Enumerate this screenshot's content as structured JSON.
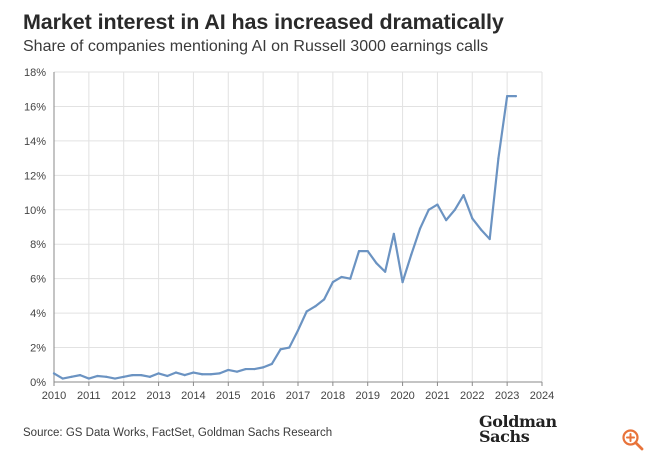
{
  "title": "Market interest in AI has increased dramatically",
  "subtitle": "Share of companies mentioning AI on Russell 3000 earnings calls",
  "source": "Source: GS Data Works, FactSet, Goldman Sachs Research",
  "logo": {
    "line1": "Goldman",
    "line2": "Sachs"
  },
  "icons": {
    "zoom": "zoom-in-icon"
  },
  "colors": {
    "line": "#6b93c2",
    "grid": "#e2e2e2",
    "axis": "#8a8a8a",
    "tick_text": "#444444",
    "zoom_icon": "#e8733a"
  },
  "chart_data": {
    "type": "line",
    "title": "Market interest in AI has increased dramatically",
    "subtitle": "Share of companies mentioning AI on Russell 3000 earnings calls",
    "xlabel": "",
    "ylabel": "",
    "xlim": [
      2010,
      2024
    ],
    "ylim": [
      0,
      18
    ],
    "x_ticks": [
      2010,
      2011,
      2012,
      2013,
      2014,
      2015,
      2016,
      2017,
      2018,
      2019,
      2020,
      2021,
      2022,
      2023,
      2024
    ],
    "y_ticks": [
      0,
      2,
      4,
      6,
      8,
      10,
      12,
      14,
      16,
      18
    ],
    "y_tick_labels": [
      "0%",
      "2%",
      "4%",
      "6%",
      "8%",
      "10%",
      "12%",
      "14%",
      "16%",
      "18%"
    ],
    "grid": true,
    "series": [
      {
        "name": "Share of companies mentioning AI",
        "x": [
          2010.0,
          2010.25,
          2010.5,
          2010.75,
          2011.0,
          2011.25,
          2011.5,
          2011.75,
          2012.0,
          2012.25,
          2012.5,
          2012.75,
          2013.0,
          2013.25,
          2013.5,
          2013.75,
          2014.0,
          2014.25,
          2014.5,
          2014.75,
          2015.0,
          2015.25,
          2015.5,
          2015.75,
          2016.0,
          2016.25,
          2016.5,
          2016.75,
          2017.0,
          2017.25,
          2017.5,
          2017.75,
          2018.0,
          2018.25,
          2018.5,
          2018.75,
          2019.0,
          2019.25,
          2019.5,
          2019.75,
          2020.0,
          2020.25,
          2020.5,
          2020.75,
          2021.0,
          2021.25,
          2021.5,
          2021.75,
          2022.0,
          2022.25,
          2022.5,
          2022.75,
          2023.0,
          2023.25
        ],
        "values": [
          0.5,
          0.2,
          0.3,
          0.4,
          0.2,
          0.35,
          0.3,
          0.2,
          0.3,
          0.4,
          0.4,
          0.3,
          0.5,
          0.35,
          0.55,
          0.4,
          0.55,
          0.45,
          0.45,
          0.5,
          0.7,
          0.6,
          0.75,
          0.75,
          0.85,
          1.05,
          1.9,
          2.0,
          3.0,
          4.1,
          4.4,
          4.8,
          5.8,
          6.1,
          6.0,
          7.6,
          7.6,
          6.9,
          6.4,
          8.6,
          5.8,
          7.4,
          8.9,
          10.0,
          10.3,
          9.4,
          10.0,
          10.85,
          9.5,
          8.85,
          8.3,
          13.0,
          16.6,
          16.6
        ]
      }
    ]
  }
}
